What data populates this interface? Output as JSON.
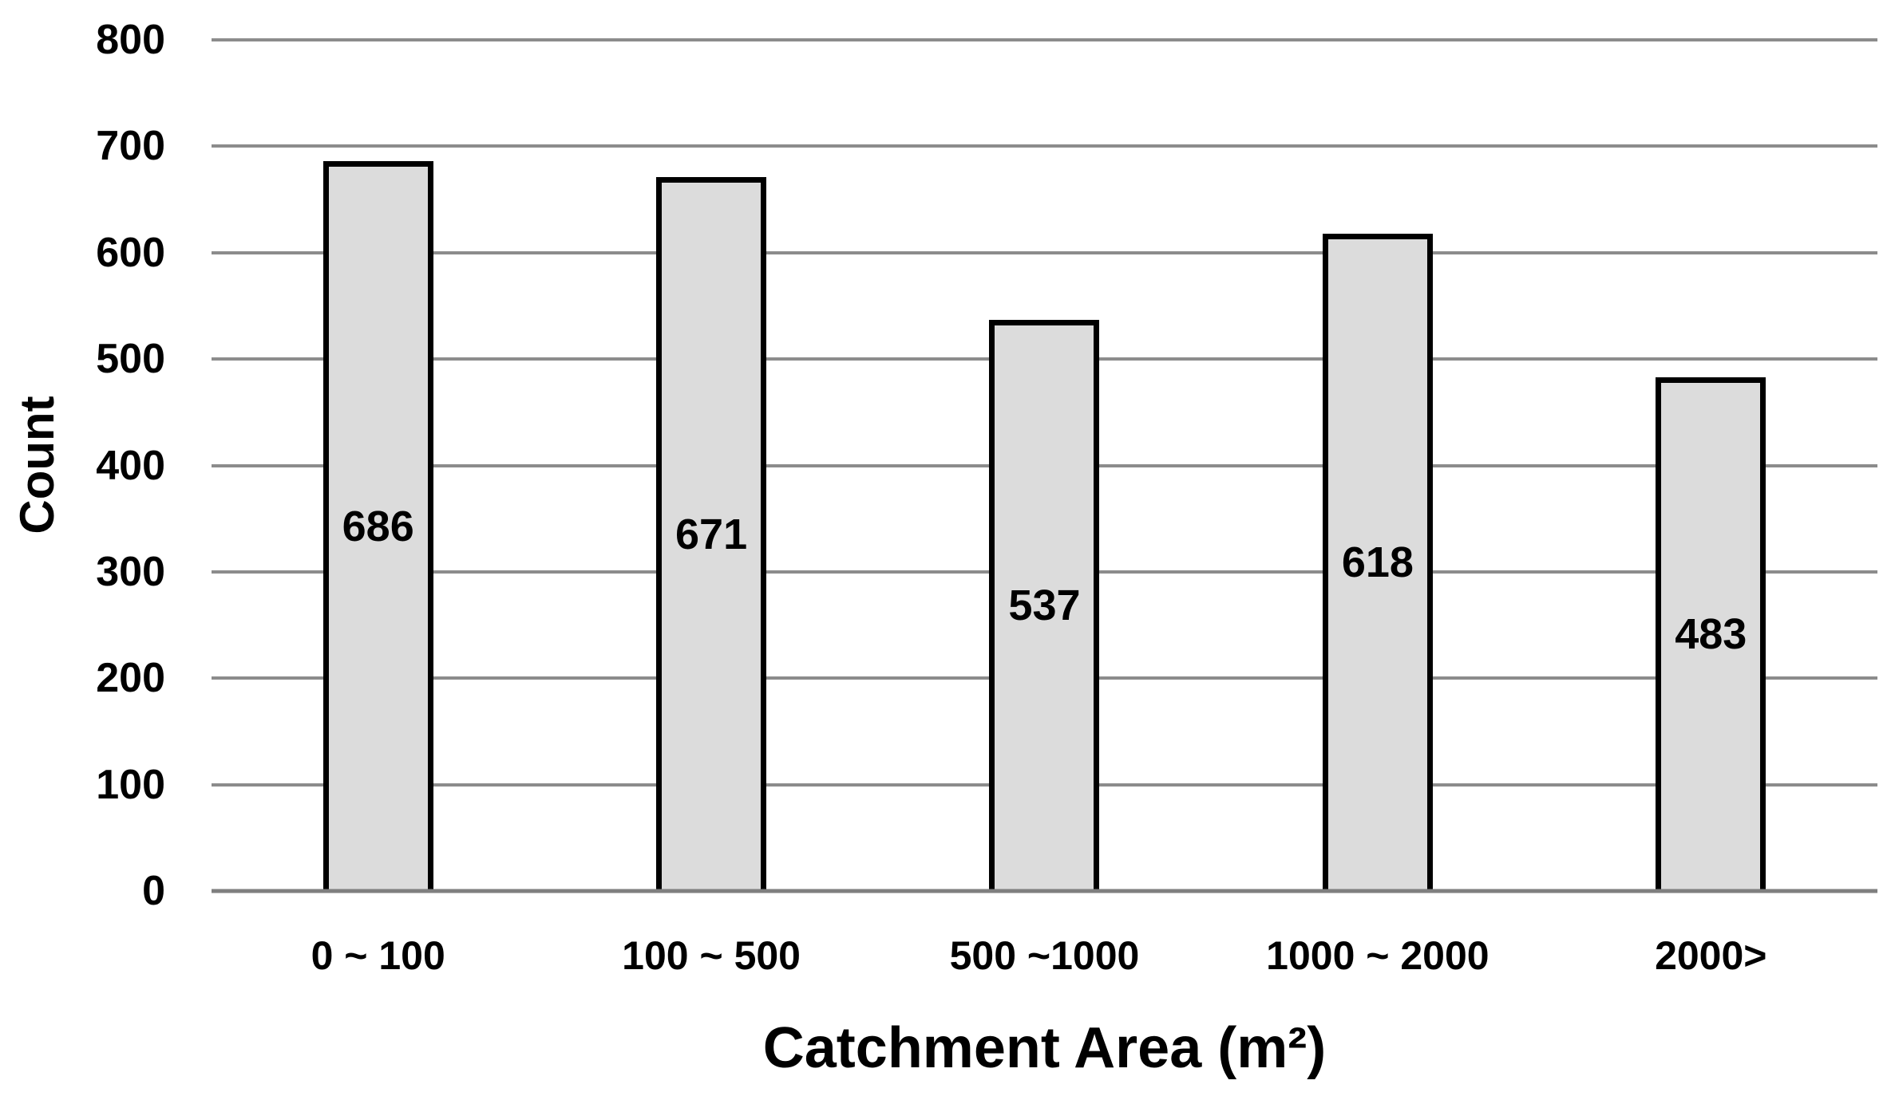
{
  "chart_data": {
    "type": "bar",
    "title": "",
    "xlabel": "Catchment Area (m²)",
    "ylabel": "Count",
    "categories": [
      "0 ~ 100",
      "100 ~ 500",
      "500 ~1000",
      "1000 ~ 2000",
      "2000>"
    ],
    "values": [
      686,
      671,
      537,
      618,
      483
    ],
    "data_labels": [
      "686",
      "671",
      "537",
      "618",
      "483"
    ],
    "ylim": [
      0,
      800
    ],
    "yticks": [
      0,
      100,
      200,
      300,
      400,
      500,
      600,
      700,
      800
    ],
    "grid": true,
    "legend_position": "none",
    "colors": {
      "bar_fill": "#DCDCDC",
      "bar_border": "#000000",
      "gridline": "#8C8C8C",
      "baseline": "#7F7F7F",
      "text": "#000000",
      "background": "#FFFFFF"
    }
  }
}
